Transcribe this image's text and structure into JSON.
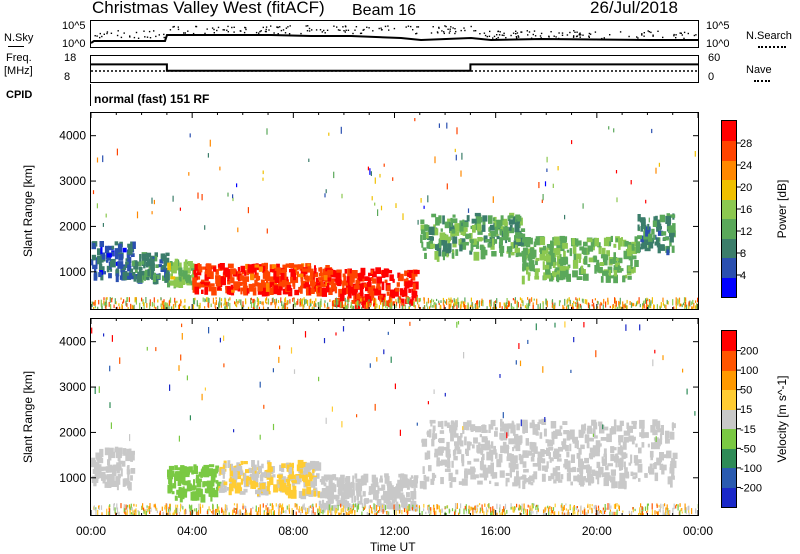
{
  "header": {
    "station": "Christmas Valley West (fitACF)",
    "beam": "Beam 16",
    "date": "26/Jul/2018"
  },
  "noise": {
    "left_label": "N.Sky",
    "right_label": "N.Search",
    "tick_top": "10^5",
    "tick_bottom": "10^0"
  },
  "freq": {
    "left_label_1": "Freq.",
    "left_label_2": "[MHz]",
    "right_label": "Nave",
    "left_ticks": [
      "18",
      "8"
    ],
    "right_ticks": [
      "60",
      "0"
    ],
    "steps": [
      {
        "t": 0,
        "mhz": 14
      },
      {
        "t": 3,
        "mhz": 10
      },
      {
        "t": 15,
        "mhz": 14
      },
      {
        "t": 24,
        "mhz": 14
      }
    ]
  },
  "cpid": {
    "label": "CPID",
    "text": "normal (fast) 151 RF"
  },
  "axes": {
    "y_label": "Slant Range [km]",
    "y_ticks": [
      "4000",
      "3000",
      "2000",
      "1000"
    ],
    "x_label": "Time UT",
    "x_ticks": [
      "00:00",
      "04:00",
      "08:00",
      "12:00",
      "16:00",
      "20:00",
      "00:00"
    ]
  },
  "colors": {
    "power_scale": [
      "#0000ff",
      "#2a4fb0",
      "#3b7d6a",
      "#5aa85a",
      "#8cc850",
      "#f0c000",
      "#ff8800",
      "#ff4400",
      "#ff0000"
    ],
    "velocity_scale": [
      "#1a28c8",
      "#2a5bb0",
      "#2e8b57",
      "#7ac943",
      "#c8c8c8",
      "#ffcc33",
      "#ff9900",
      "#ff5500",
      "#ff0000"
    ]
  },
  "chart_data": [
    {
      "type": "heatmap",
      "title": "",
      "xlabel": "Time UT",
      "ylabel": "Slant Range [km]",
      "xlim": [
        0,
        24
      ],
      "ylim": [
        180,
        4500
      ],
      "colorbar": {
        "label": "Power [dB]",
        "ticks": [
          "28",
          "24",
          "20",
          "16",
          "12",
          "8",
          "4"
        ],
        "range": [
          0,
          30
        ]
      },
      "regions": [
        {
          "t0": 0.0,
          "t1": 1.6,
          "r0": 900,
          "r1": 1700,
          "value": 6
        },
        {
          "t0": 1.6,
          "t1": 3.0,
          "r0": 900,
          "r1": 1450,
          "value": 8
        },
        {
          "t0": 3.0,
          "t1": 4.0,
          "r0": 750,
          "r1": 1300,
          "value": 14
        },
        {
          "t0": 4.0,
          "t1": 9.5,
          "r0": 600,
          "r1": 1200,
          "value": 26
        },
        {
          "t0": 9.5,
          "t1": 12.8,
          "r0": 350,
          "r1": 1100,
          "value": 27
        },
        {
          "t0": 13.0,
          "t1": 17.0,
          "r0": 1400,
          "r1": 2300,
          "value": 12
        },
        {
          "t0": 17.0,
          "t1": 21.5,
          "r0": 900,
          "r1": 1800,
          "value": 13
        },
        {
          "t0": 21.5,
          "t1": 23.0,
          "r0": 1500,
          "r1": 2300,
          "value": 9
        }
      ]
    },
    {
      "type": "heatmap",
      "title": "",
      "xlabel": "Time UT",
      "ylabel": "Slant Range [km]",
      "xlim": [
        0,
        24
      ],
      "ylim": [
        180,
        4500
      ],
      "colorbar": {
        "label": "Velocity [m s^-1]",
        "ticks": [
          "200",
          "100",
          "50",
          "15",
          "-15",
          "-50",
          "-100",
          "-200"
        ],
        "range": [
          -250,
          250
        ]
      },
      "regions": [
        {
          "t0": 0.0,
          "t1": 1.6,
          "r0": 900,
          "r1": 1700,
          "value": 0
        },
        {
          "t0": 3.0,
          "t1": 5.0,
          "r0": 600,
          "r1": 1300,
          "value": -60
        },
        {
          "t0": 5.0,
          "t1": 9.0,
          "r0": 700,
          "r1": 1400,
          "value": 30
        },
        {
          "t0": 9.0,
          "t1": 12.8,
          "r0": 400,
          "r1": 1100,
          "value": 0
        },
        {
          "t0": 13.0,
          "t1": 23.0,
          "r0": 900,
          "r1": 2300,
          "value": 0
        }
      ]
    }
  ]
}
